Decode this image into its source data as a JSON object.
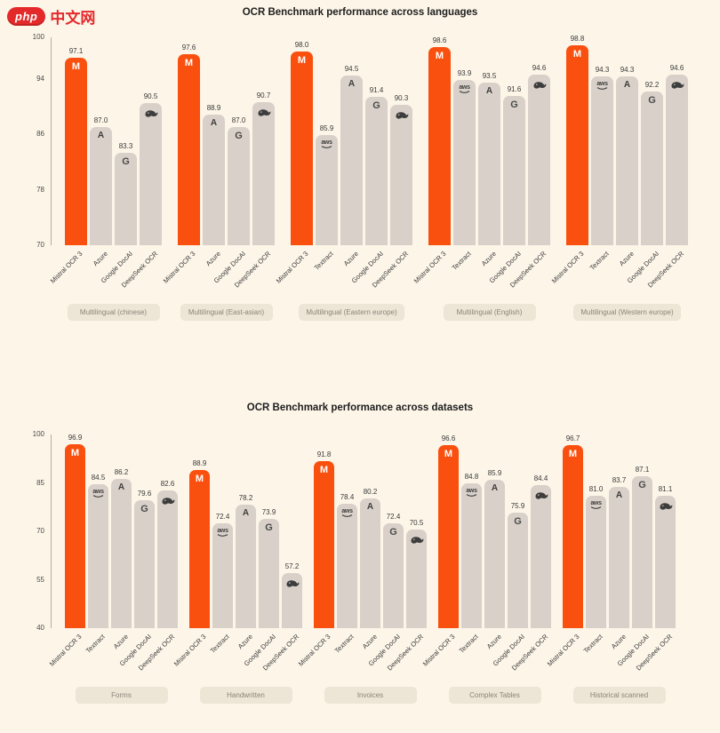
{
  "logo": {
    "badge": "php",
    "text": "中文网",
    "color": "#E4292B"
  },
  "colors": {
    "background": "#FCF5E8",
    "highlight_bar": "#FA500F",
    "default_bar": "#D9D1C9",
    "pill_background": "#EDE5D6"
  },
  "chart_data": [
    {
      "type": "bar",
      "title": "OCR Benchmark performance across languages",
      "ylabel": "",
      "xlabel": "",
      "ylim": [
        70,
        100
      ],
      "yticks": [
        70,
        78,
        86,
        94,
        100
      ],
      "grid": false,
      "legend": "none",
      "highlight_series": "Mistral OCR 3",
      "groups": [
        {
          "label": "Multilingual (chinese)",
          "bars": [
            {
              "name": "Mistral OCR 3",
              "value": 97.1,
              "label": "97.1",
              "logo": "mistral"
            },
            {
              "name": "Azure",
              "value": 87.0,
              "label": "87.0",
              "logo": "azure"
            },
            {
              "name": "Google DocAI",
              "value": 83.3,
              "label": "83.3",
              "logo": "google"
            },
            {
              "name": "DeepSeek OCR",
              "value": 90.5,
              "label": "90.5",
              "logo": "deepseek"
            }
          ]
        },
        {
          "label": "Multilingual (East-asian)",
          "bars": [
            {
              "name": "Mistral OCR 3",
              "value": 97.6,
              "label": "97.6",
              "logo": "mistral"
            },
            {
              "name": "Azure",
              "value": 88.9,
              "label": "88.9",
              "logo": "azure"
            },
            {
              "name": "Google DocAI",
              "value": 87.0,
              "label": "87.0",
              "logo": "google"
            },
            {
              "name": "DeepSeek OCR",
              "value": 90.7,
              "label": "90.7",
              "logo": "deepseek"
            }
          ]
        },
        {
          "label": "Multilingual (Eastern europe)",
          "bars": [
            {
              "name": "Mistral OCR 3",
              "value": 98.0,
              "label": "98.0",
              "logo": "mistral"
            },
            {
              "name": "Textract",
              "value": 85.9,
              "label": "85.9",
              "logo": "textract"
            },
            {
              "name": "Azure",
              "value": 94.5,
              "label": "94.5",
              "logo": "azure"
            },
            {
              "name": "Google DocAI",
              "value": 91.4,
              "label": "91.4",
              "logo": "google"
            },
            {
              "name": "DeepSeek OCR",
              "value": 90.3,
              "label": "90.3",
              "logo": "deepseek"
            }
          ]
        },
        {
          "label": "Multilingual (English)",
          "bars": [
            {
              "name": "Mistral OCR 3",
              "value": 98.6,
              "label": "98.6",
              "logo": "mistral"
            },
            {
              "name": "Textract",
              "value": 93.9,
              "label": "93.9",
              "logo": "textract"
            },
            {
              "name": "Azure",
              "value": 93.5,
              "label": "93.5",
              "logo": "azure"
            },
            {
              "name": "Google DocAI",
              "value": 91.6,
              "label": "91.6",
              "logo": "google"
            },
            {
              "name": "DeepSeek OCR",
              "value": 94.6,
              "label": "94.6",
              "logo": "deepseek"
            }
          ]
        },
        {
          "label": "Multilingual (Western europe)",
          "bars": [
            {
              "name": "Mistral OCR 3",
              "value": 98.8,
              "label": "98.8",
              "logo": "mistral"
            },
            {
              "name": "Textract",
              "value": 94.3,
              "label": "94.3",
              "logo": "textract"
            },
            {
              "name": "Azure",
              "value": 94.3,
              "label": "94.3",
              "logo": "azure"
            },
            {
              "name": "Google DocAI",
              "value": 92.2,
              "label": "92.2",
              "logo": "google"
            },
            {
              "name": "DeepSeek OCR",
              "value": 94.6,
              "label": "94.6",
              "logo": "deepseek"
            }
          ]
        }
      ]
    },
    {
      "type": "bar",
      "title": "OCR Benchmark performance across datasets",
      "ylabel": "",
      "xlabel": "",
      "ylim": [
        40,
        100
      ],
      "yticks": [
        40,
        55,
        70,
        85,
        100
      ],
      "grid": false,
      "legend": "none",
      "highlight_series": "Mistral OCR 3",
      "groups": [
        {
          "label": "Forms",
          "bars": [
            {
              "name": "Mistral OCR 3",
              "value": 96.9,
              "label": "96.9",
              "logo": "mistral"
            },
            {
              "name": "Textract",
              "value": 84.5,
              "label": "84.5",
              "logo": "textract"
            },
            {
              "name": "Azure",
              "value": 86.2,
              "label": "86.2",
              "logo": "azure"
            },
            {
              "name": "Google DocAI",
              "value": 79.6,
              "label": "79.6",
              "logo": "google"
            },
            {
              "name": "DeepSeek OCR",
              "value": 82.6,
              "label": "82.6",
              "logo": "deepseek"
            }
          ]
        },
        {
          "label": "Handwritten",
          "bars": [
            {
              "name": "Mistral OCR 3",
              "value": 88.9,
              "label": "88.9",
              "logo": "mistral"
            },
            {
              "name": "Textract",
              "value": 72.4,
              "label": "72.4",
              "logo": "textract"
            },
            {
              "name": "Azure",
              "value": 78.2,
              "label": "78.2",
              "logo": "azure"
            },
            {
              "name": "Google DocAI",
              "value": 73.9,
              "label": "73.9",
              "logo": "google"
            },
            {
              "name": "DeepSeek OCR",
              "value": 57.2,
              "label": "57.2",
              "logo": "deepseek"
            }
          ]
        },
        {
          "label": "Invoices",
          "bars": [
            {
              "name": "Mistral OCR 3",
              "value": 91.8,
              "label": "91.8",
              "logo": "mistral"
            },
            {
              "name": "Textract",
              "value": 78.4,
              "label": "78.4",
              "logo": "textract"
            },
            {
              "name": "Azure",
              "value": 80.2,
              "label": "80.2",
              "logo": "azure"
            },
            {
              "name": "Google DocAI",
              "value": 72.4,
              "label": "72.4",
              "logo": "google"
            },
            {
              "name": "DeepSeek OCR",
              "value": 70.5,
              "label": "70.5",
              "logo": "deepseek"
            }
          ]
        },
        {
          "label": "Complex Tables",
          "bars": [
            {
              "name": "Mistral OCR 3",
              "value": 96.6,
              "label": "96.6",
              "logo": "mistral"
            },
            {
              "name": "Textract",
              "value": 84.8,
              "label": "84.8",
              "logo": "textract"
            },
            {
              "name": "Azure",
              "value": 85.9,
              "label": "85.9",
              "logo": "azure"
            },
            {
              "name": "Google DocAI",
              "value": 75.9,
              "label": "75.9",
              "logo": "google"
            },
            {
              "name": "DeepSeek OCR",
              "value": 84.4,
              "label": "84.4",
              "logo": "deepseek"
            }
          ]
        },
        {
          "label": "Historical scanned",
          "bars": [
            {
              "name": "Mistral OCR 3",
              "value": 96.7,
              "label": "96.7",
              "logo": "mistral"
            },
            {
              "name": "Textract",
              "value": 81.0,
              "label": "81.0",
              "logo": "textract"
            },
            {
              "name": "Azure",
              "value": 83.7,
              "label": "83.7",
              "logo": "azure"
            },
            {
              "name": "Google DocAI",
              "value": 87.1,
              "label": "87.1",
              "logo": "google"
            },
            {
              "name": "DeepSeek OCR",
              "value": 81.1,
              "label": "81.1",
              "logo": "deepseek"
            }
          ]
        }
      ]
    }
  ]
}
